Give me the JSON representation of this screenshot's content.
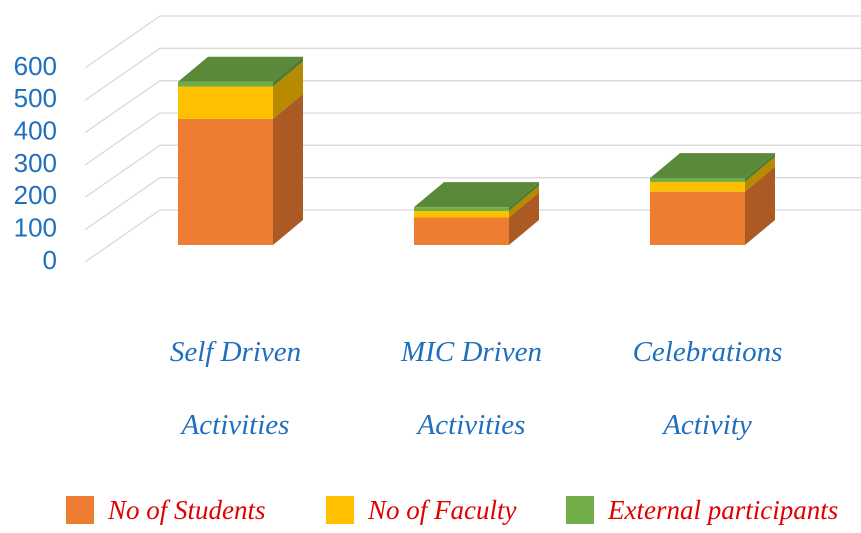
{
  "chart_data": {
    "type": "bar3d_stacked",
    "categories": [
      "Self Driven Activities",
      "MIC Driven Activities",
      "Celebrations Activity"
    ],
    "series": [
      {
        "name": "No of Students",
        "color": "#ed7d31",
        "values": [
          390,
          85,
          165
        ]
      },
      {
        "name": "No of Faculty",
        "color": "#ffc000",
        "values": [
          100,
          20,
          30
        ]
      },
      {
        "name": "External participants",
        "color": "#70ad47",
        "values": [
          15,
          12,
          12
        ]
      }
    ],
    "ylim": [
      0,
      600
    ],
    "yticks": [
      0,
      100,
      200,
      300,
      400,
      500,
      600
    ],
    "grid": true
  }
}
